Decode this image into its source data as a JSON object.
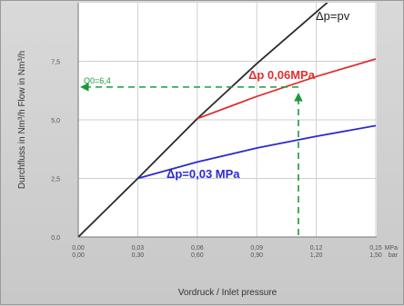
{
  "chart_data": {
    "type": "line",
    "title": "",
    "xlabel": "Vordruck / Inlet pressure",
    "ylabel": "Durchfluss in Nm³/h  Flow in Nm³/h",
    "xlim": [
      0,
      0.15
    ],
    "ylim": [
      0,
      10
    ],
    "x_ticks": [
      {
        "v": 0.0,
        "mpa": "0,00",
        "bar": "0,00"
      },
      {
        "v": 0.03,
        "mpa": "0,03",
        "bar": "0,30"
      },
      {
        "v": 0.06,
        "mpa": "0,06",
        "bar": "0,60"
      },
      {
        "v": 0.09,
        "mpa": "0,09",
        "bar": "0,90"
      },
      {
        "v": 0.12,
        "mpa": "0,12",
        "bar": "1,20"
      },
      {
        "v": 0.15,
        "mpa": "0,15",
        "bar": "1,50"
      }
    ],
    "x_unit_top": "MPa",
    "x_unit_bottom": "bar",
    "y_ticks": [
      {
        "v": 0,
        "label": "0,0"
      },
      {
        "v": 2.5,
        "label": "2,5"
      },
      {
        "v": 5,
        "label": "5,0"
      },
      {
        "v": 7.5,
        "label": "7,5"
      }
    ],
    "series": [
      {
        "name": "Δp=pv",
        "color": "#2b2b2b",
        "x": [
          0,
          0.03,
          0.06,
          0.09,
          0.12,
          0.135
        ],
        "y": [
          0,
          2.5,
          5.05,
          7.4,
          9.6,
          10.7
        ]
      },
      {
        "name": "Δp 0,06MPa",
        "color": "#e03030",
        "x": [
          0.06,
          0.09,
          0.12,
          0.15
        ],
        "y": [
          5.05,
          6.0,
          6.85,
          7.6
        ]
      },
      {
        "name": "Δp=0,03 MPa",
        "color": "#2a2ad0",
        "x": [
          0.03,
          0.06,
          0.09,
          0.12,
          0.15
        ],
        "y": [
          2.5,
          3.2,
          3.8,
          4.3,
          4.75
        ]
      }
    ],
    "guide": {
      "label": "Q0=6,4",
      "x": 0.111,
      "y": 6.4,
      "color": "#1a9a3a"
    },
    "grid": true,
    "legend": "inline labels"
  }
}
